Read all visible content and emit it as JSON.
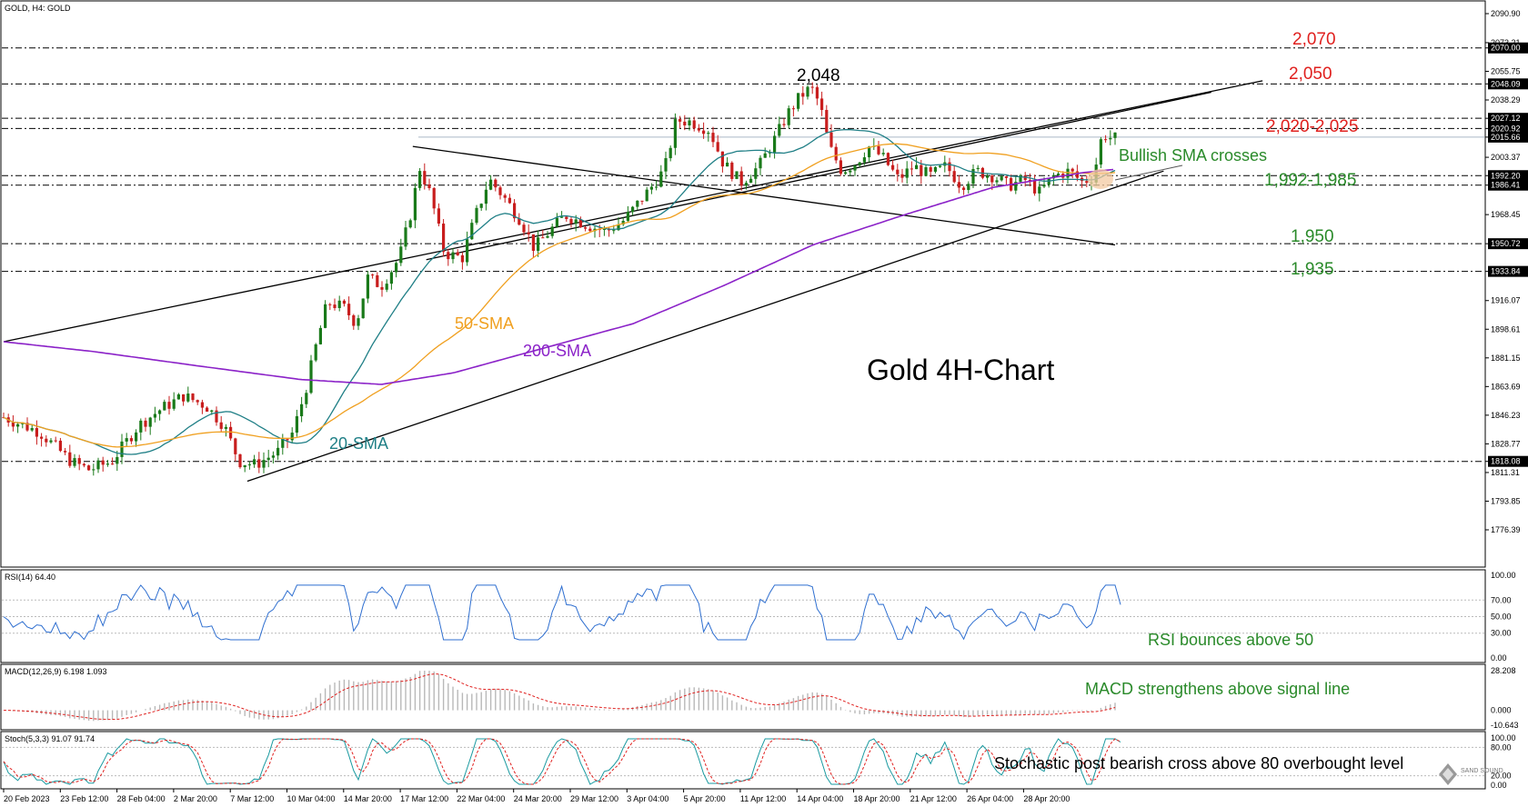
{
  "window": {
    "title": "GOLD, H4:  GOLD"
  },
  "chart_data": {
    "type": "candlestick",
    "title": "Gold 4H-Chart",
    "symbol": "GOLD",
    "timeframe": "H4",
    "y_range": [
      1760,
      2095
    ],
    "price_ticks": [
      "2090.90",
      "2073.21",
      "2070.00",
      "2055.75",
      "2048.09",
      "2038.29",
      "2027.12",
      "2020.92",
      "2015.66",
      "2003.37",
      "1992.20",
      "1986.41",
      "1968.45",
      "1950.72",
      "1933.84",
      "1916.07",
      "1898.61",
      "1881.15",
      "1863.69",
      "1846.23",
      "1828.77",
      "1818.08",
      "1811.31",
      "1793.85",
      "1776.39"
    ],
    "x_labels": [
      "20 Feb 2023",
      "23 Feb 12:00",
      "28 Feb 04:00",
      "2 Mar 20:00",
      "7 Mar 12:00",
      "10 Mar 04:00",
      "14 Mar 20:00",
      "17 Mar 12:00",
      "22 Mar 04:00",
      "24 Mar 20:00",
      "29 Mar 12:00",
      "3 Apr 04:00",
      "5 Apr 20:00",
      "11 Apr 12:00",
      "14 Apr 04:00",
      "18 Apr 20:00",
      "21 Apr 12:00",
      "26 Apr 04:00",
      "28 Apr 20:00"
    ],
    "levels": [
      {
        "value": 2070,
        "label": "2,070",
        "color": "#e0201e",
        "style": "dashdot"
      },
      {
        "value": 2048.09,
        "label": "2,050",
        "color": "#e0201e",
        "style": "dashdot"
      },
      {
        "value": 2027.12,
        "label": "2,020-2,025",
        "color": "#e0201e",
        "style": "dashdot"
      },
      {
        "value": 2020.92,
        "label": "",
        "color": "#e0201e",
        "style": "dashdot"
      },
      {
        "value": 1992.2,
        "label": "1,992-1,985",
        "color": "#2a8a2a",
        "style": "dashdot"
      },
      {
        "value": 1986.41,
        "label": "",
        "color": "#2a8a2a",
        "style": "dashdot"
      },
      {
        "value": 1950.72,
        "label": "1,950",
        "color": "#2a8a2a",
        "style": "dashdot"
      },
      {
        "value": 1933.84,
        "label": "1,935",
        "color": "#2a8a2a",
        "style": "dashdot"
      },
      {
        "value": 1818.08,
        "label": "",
        "color": "#2a8a2a",
        "style": "dashdot"
      }
    ],
    "highlight_tags": [
      "2070.00",
      "2048.09",
      "2027.12",
      "2020.92",
      "2015.66",
      "1992.20",
      "1986.41",
      "1950.72",
      "1933.84",
      "1818.08"
    ],
    "peak": {
      "label": "2,048",
      "value": 2048
    },
    "sma": [
      {
        "name": "20-SMA",
        "color": "#1f7f86"
      },
      {
        "name": "50-SMA",
        "color": "#f0a020"
      },
      {
        "name": "200-SMA",
        "color": "#8b22c8"
      }
    ],
    "annotations": {
      "sma_cross": "Bullish SMA crosses"
    },
    "trendlines": [
      {
        "from": [
          0,
          1891
        ],
        "to": [
          1400,
          2050
        ]
      },
      {
        "from": [
          455,
          2010
        ],
        "to": [
          1236,
          1950
        ]
      },
      {
        "from": [
          271,
          1806
        ],
        "to": [
          1290,
          1995
        ]
      },
      {
        "from": [
          470,
          1941
        ],
        "to": [
          1343,
          2043
        ]
      }
    ]
  },
  "rsi": {
    "header": "RSI(14) 64.40",
    "ticks": [
      "100.00",
      "70.00",
      "50.00",
      "30.00",
      "0.00"
    ],
    "annotation": "RSI bounces above 50",
    "color": "#2f6fd0"
  },
  "macd": {
    "header": "MACD(12,26,9) 6.198 1.093",
    "ticks": [
      "28.208",
      "0.000",
      "-10.643"
    ],
    "annotation": "MACD strengthens above signal line",
    "signal_color": "#e0201e"
  },
  "stoch": {
    "header": "Stoch(5,3,3) 91.07 91.74",
    "ticks": [
      "100.00",
      "80.00",
      "20.00",
      "0.00"
    ],
    "annotation": "Stochastic post bearish cross above 80 overbought level",
    "color": "#1a9aa0",
    "signal_color": "#e0201e"
  },
  "watermark": {
    "brand": "SAND SOUND"
  },
  "colors": {
    "annotation_green": "#2a8a2a",
    "annotation_red": "#e0201e"
  }
}
